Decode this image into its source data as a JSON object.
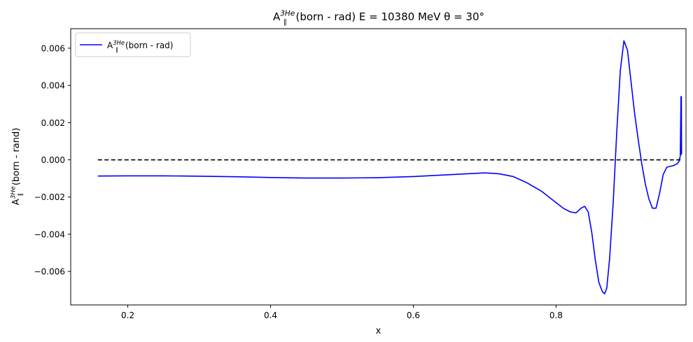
{
  "chart_data": {
    "type": "line",
    "title": {
      "prefix": "A",
      "sub": "∥",
      "sup": "3He",
      "text": "(born - rad) E = 10380 MeV θ = 30°"
    },
    "xlabel": "x",
    "ylabel": {
      "prefix": "A",
      "sub": "∥",
      "sup": "3He",
      "text": "(born - rand)"
    },
    "xlim": [
      0.12,
      0.982
    ],
    "ylim": [
      -0.0078,
      0.00705
    ],
    "xticks": [
      0.2,
      0.4,
      0.6,
      0.8,
      1.0
    ],
    "xtick_labels": [
      "0.2",
      "0.4",
      "0.6",
      "0.8",
      "1.0"
    ],
    "yticks": [
      -0.006,
      -0.004,
      -0.002,
      0.0,
      0.002,
      0.004,
      0.006
    ],
    "ytick_labels": [
      "−0.006",
      "−0.004",
      "−0.002",
      "0.000",
      "0.002",
      "0.004",
      "0.006"
    ],
    "grid": false,
    "legend_position": "top-left",
    "series": [
      {
        "name": {
          "prefix": "A",
          "sub": "∥",
          "sup": "3He",
          "text": "(born - rad)"
        },
        "color": "#0000ff",
        "style": "solid",
        "x": [
          0.158,
          0.2,
          0.25,
          0.3,
          0.35,
          0.4,
          0.45,
          0.5,
          0.55,
          0.6,
          0.65,
          0.7,
          0.72,
          0.74,
          0.76,
          0.78,
          0.8,
          0.81,
          0.82,
          0.828,
          0.835,
          0.84,
          0.845,
          0.85,
          0.855,
          0.86,
          0.865,
          0.868,
          0.871,
          0.875,
          0.88,
          0.885,
          0.89,
          0.895,
          0.9,
          0.905,
          0.91,
          0.915,
          0.92,
          0.925,
          0.93,
          0.935,
          0.94,
          0.945,
          0.95,
          0.955,
          0.96,
          0.965,
          0.97,
          0.972,
          0.974,
          0.975,
          0.9752,
          0.9755,
          0.9758,
          0.976
        ],
        "y": [
          -0.00087,
          -0.00086,
          -0.00086,
          -0.00088,
          -0.00091,
          -0.00095,
          -0.00098,
          -0.00098,
          -0.00096,
          -0.0009,
          -0.0008,
          -0.0007,
          -0.00075,
          -0.0009,
          -0.00125,
          -0.0017,
          -0.0023,
          -0.0026,
          -0.0028,
          -0.00285,
          -0.0026,
          -0.0025,
          -0.0028,
          -0.0039,
          -0.0054,
          -0.0066,
          -0.0071,
          -0.0072,
          -0.0069,
          -0.0053,
          -0.0023,
          0.0015,
          0.0048,
          0.0064,
          0.0059,
          0.0042,
          0.0025,
          0.0011,
          -0.0002,
          -0.0013,
          -0.0021,
          -0.0026,
          -0.0026,
          -0.0018,
          -0.0008,
          -0.0004,
          -0.00035,
          -0.0003,
          -0.0002,
          -0.0001,
          0.0002,
          0.0034,
          0.0003,
          0.0034,
          0.0003,
          0.0003
        ]
      },
      {
        "color": "#000000",
        "style": "dashed",
        "x": [
          0.158,
          0.976
        ],
        "y": [
          0.0,
          0.0
        ]
      }
    ]
  }
}
